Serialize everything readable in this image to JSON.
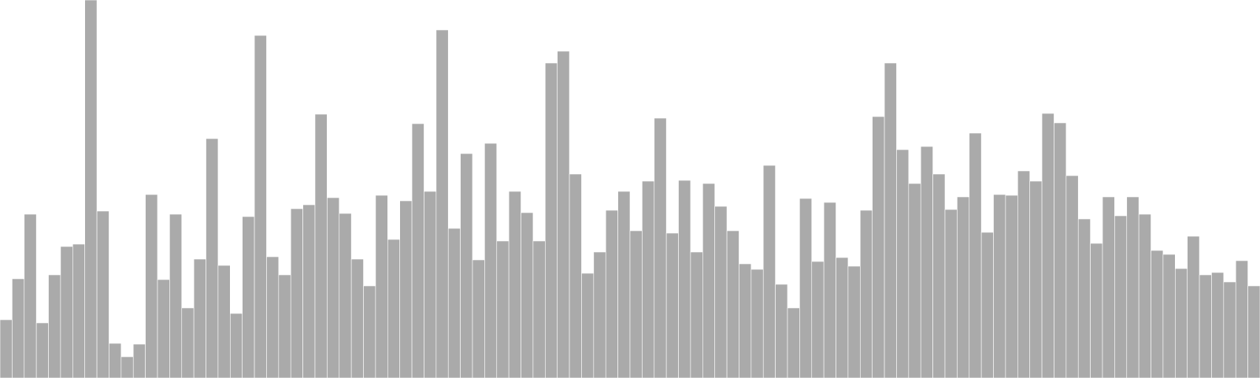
{
  "chart_data": {
    "type": "bar",
    "title": "",
    "xlabel": "",
    "ylabel": "",
    "ylim": [
      0,
      480
    ],
    "grid": false,
    "legend": "none",
    "bar_color": "#aaaaaa",
    "bar_edge_color": "#ffffff",
    "values": [
      74,
      126,
      208,
      70,
      131,
      167,
      170,
      480,
      212,
      44,
      27,
      43,
      233,
      125,
      208,
      89,
      151,
      304,
      143,
      82,
      205,
      435,
      154,
      131,
      215,
      220,
      335,
      229,
      209,
      151,
      117,
      232,
      176,
      225,
      323,
      237,
      442,
      190,
      285,
      150,
      298,
      174,
      237,
      210,
      174,
      400,
      415,
      259,
      133,
      160,
      213,
      237,
      187,
      250,
      330,
      184,
      251,
      160,
      247,
      218,
      187,
      145,
      138,
      270,
      119,
      89,
      228,
      148,
      223,
      153,
      142,
      213,
      332,
      400,
      290,
      247,
      294,
      259,
      214,
      230,
      311,
      185,
      233,
      232,
      263,
      250,
      336,
      324,
      257,
      202,
      171,
      230,
      206,
      230,
      208,
      162,
      157,
      139,
      180,
      131,
      134,
      122,
      149,
      117
    ]
  }
}
